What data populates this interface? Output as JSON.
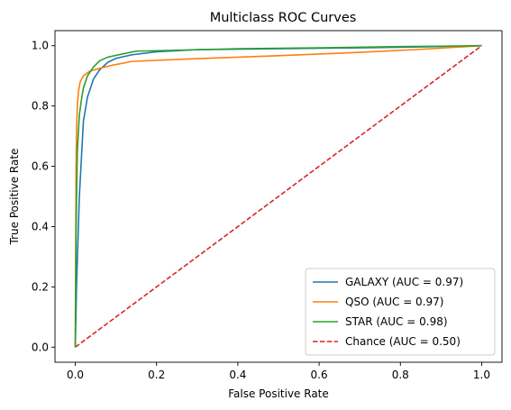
{
  "chart_data": {
    "type": "line",
    "title": "Multiclass ROC Curves",
    "xlabel": "False Positive Rate",
    "ylabel": "True Positive Rate",
    "xlim": [
      -0.05,
      1.05
    ],
    "ylim": [
      -0.05,
      1.05
    ],
    "xticks": [
      0.0,
      0.2,
      0.4,
      0.6,
      0.8,
      1.0
    ],
    "yticks": [
      0.0,
      0.2,
      0.4,
      0.6,
      0.8,
      1.0
    ],
    "xtick_labels": [
      "0.0",
      "0.2",
      "0.4",
      "0.6",
      "0.8",
      "1.0"
    ],
    "ytick_labels": [
      "0.0",
      "0.2",
      "0.4",
      "0.6",
      "0.8",
      "1.0"
    ],
    "grid": false,
    "legend_position": "lower-right",
    "series": [
      {
        "name": "GALAXY (AUC = 0.97)",
        "color": "#1f77b4",
        "dash": "solid",
        "x": [
          0.0,
          0.003,
          0.01,
          0.02,
          0.03,
          0.045,
          0.06,
          0.08,
          0.1,
          0.14,
          0.2,
          0.3,
          0.5,
          0.7,
          0.85,
          1.0
        ],
        "y": [
          0.0,
          0.2,
          0.5,
          0.75,
          0.83,
          0.89,
          0.92,
          0.945,
          0.958,
          0.97,
          0.98,
          0.987,
          0.99,
          0.993,
          0.996,
          1.0
        ]
      },
      {
        "name": "QSO (AUC = 0.97)",
        "color": "#ff7f0e",
        "dash": "solid",
        "x": [
          0.0,
          0.001,
          0.002,
          0.003,
          0.005,
          0.008,
          0.012,
          0.02,
          0.035,
          0.06,
          0.09,
          0.14,
          0.3,
          0.5,
          0.7,
          0.85,
          1.0
        ],
        "y": [
          0.0,
          0.35,
          0.6,
          0.72,
          0.8,
          0.85,
          0.88,
          0.9,
          0.915,
          0.925,
          0.935,
          0.948,
          0.957,
          0.967,
          0.978,
          0.988,
          1.0
        ]
      },
      {
        "name": "STAR (AUC = 0.98)",
        "color": "#2ca02c",
        "dash": "solid",
        "x": [
          0.0,
          0.002,
          0.005,
          0.01,
          0.015,
          0.02,
          0.03,
          0.045,
          0.06,
          0.08,
          0.1,
          0.15,
          0.25,
          0.4,
          0.6,
          0.8,
          1.0
        ],
        "y": [
          0.0,
          0.4,
          0.65,
          0.77,
          0.82,
          0.86,
          0.9,
          0.93,
          0.95,
          0.962,
          0.968,
          0.982,
          0.985,
          0.99,
          0.993,
          0.997,
          1.0
        ]
      },
      {
        "name": "Chance (AUC = 0.50)",
        "color": "#d62728",
        "dash": "dashed",
        "x": [
          0.0,
          1.0
        ],
        "y": [
          0.0,
          1.0
        ]
      }
    ]
  }
}
